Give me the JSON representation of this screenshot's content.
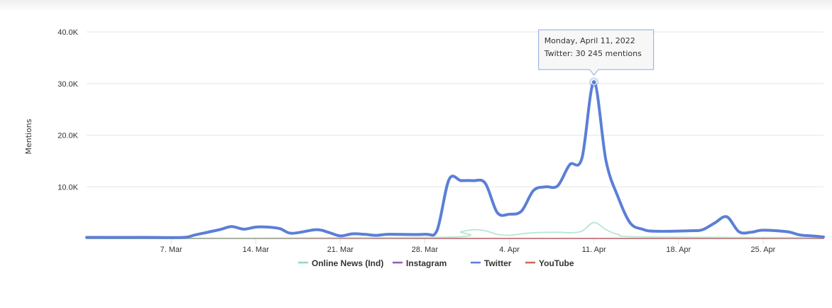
{
  "chart_data": {
    "type": "line",
    "title": "",
    "xlabel": "",
    "ylabel": "Mentions",
    "ylim": [
      0,
      40000
    ],
    "y_ticks": [
      {
        "value": 10000,
        "label": "10.0K"
      },
      {
        "value": 20000,
        "label": "20.0K"
      },
      {
        "value": 30000,
        "label": "30.0K"
      },
      {
        "value": 40000,
        "label": "40.0K"
      }
    ],
    "x_range": [
      "2022-02-28",
      "2022-04-30"
    ],
    "x_ticks": [
      {
        "date": "2022-03-07",
        "label": "7. Mar"
      },
      {
        "date": "2022-03-14",
        "label": "14. Mar"
      },
      {
        "date": "2022-03-21",
        "label": "21. Mar"
      },
      {
        "date": "2022-03-28",
        "label": "28. Mar"
      },
      {
        "date": "2022-04-04",
        "label": "4. Apr"
      },
      {
        "date": "2022-04-11",
        "label": "11. Apr"
      },
      {
        "date": "2022-04-18",
        "label": "18. Apr"
      },
      {
        "date": "2022-04-25",
        "label": "25. Apr"
      }
    ],
    "grid": true,
    "legend_position": "bottom",
    "series": [
      {
        "name": "Online News (Ind)",
        "color": "#90dbb8",
        "points": [
          [
            "2022-02-28",
            0
          ],
          [
            "2022-03-29",
            200
          ],
          [
            "2022-03-31",
            1300
          ],
          [
            "2022-04-01",
            1700
          ],
          [
            "2022-04-02",
            1500
          ],
          [
            "2022-04-03",
            800
          ],
          [
            "2022-04-04",
            600
          ],
          [
            "2022-04-05",
            900
          ],
          [
            "2022-04-06",
            1100
          ],
          [
            "2022-04-08",
            1200
          ],
          [
            "2022-04-09",
            1100
          ],
          [
            "2022-04-10",
            1400
          ],
          [
            "2022-04-11",
            3100
          ],
          [
            "2022-04-12",
            1700
          ],
          [
            "2022-04-13",
            800
          ],
          [
            "2022-04-15",
            300
          ],
          [
            "2022-04-30",
            150
          ]
        ]
      },
      {
        "name": "Instagram",
        "color": "#9b59b6",
        "points": [
          [
            "2022-02-28",
            0
          ],
          [
            "2022-04-30",
            0
          ]
        ]
      },
      {
        "name": "Twitter",
        "color": "#5b7fd6",
        "points": [
          [
            "2022-02-28",
            200
          ],
          [
            "2022-03-05",
            200
          ],
          [
            "2022-03-08",
            200
          ],
          [
            "2022-03-09",
            700
          ],
          [
            "2022-03-11",
            1700
          ],
          [
            "2022-03-12",
            2300
          ],
          [
            "2022-03-13",
            1800
          ],
          [
            "2022-03-14",
            2200
          ],
          [
            "2022-03-15",
            2200
          ],
          [
            "2022-03-16",
            1900
          ],
          [
            "2022-03-17",
            1000
          ],
          [
            "2022-03-19",
            1700
          ],
          [
            "2022-03-20",
            1200
          ],
          [
            "2022-03-21",
            500
          ],
          [
            "2022-03-22",
            900
          ],
          [
            "2022-03-23",
            800
          ],
          [
            "2022-03-24",
            600
          ],
          [
            "2022-03-25",
            800
          ],
          [
            "2022-03-28",
            800
          ],
          [
            "2022-03-29",
            1500
          ],
          [
            "2022-03-30",
            11400
          ],
          [
            "2022-03-31",
            11200
          ],
          [
            "2022-04-01",
            11200
          ],
          [
            "2022-04-02",
            10700
          ],
          [
            "2022-04-03",
            5000
          ],
          [
            "2022-04-04",
            4700
          ],
          [
            "2022-04-05",
            5300
          ],
          [
            "2022-04-06",
            9300
          ],
          [
            "2022-04-07",
            10000
          ],
          [
            "2022-04-08",
            10200
          ],
          [
            "2022-04-09",
            14300
          ],
          [
            "2022-04-10",
            15500
          ],
          [
            "2022-04-11",
            30245
          ],
          [
            "2022-04-12",
            15000
          ],
          [
            "2022-04-13",
            8000
          ],
          [
            "2022-04-14",
            3000
          ],
          [
            "2022-04-15",
            1800
          ],
          [
            "2022-04-16",
            1400
          ],
          [
            "2022-04-19",
            1500
          ],
          [
            "2022-04-20",
            1700
          ],
          [
            "2022-04-21",
            3000
          ],
          [
            "2022-04-22",
            4200
          ],
          [
            "2022-04-23",
            1300
          ],
          [
            "2022-04-24",
            1200
          ],
          [
            "2022-04-25",
            1600
          ],
          [
            "2022-04-27",
            1300
          ],
          [
            "2022-04-28",
            700
          ],
          [
            "2022-04-29",
            500
          ],
          [
            "2022-04-30",
            300
          ]
        ]
      },
      {
        "name": "YouTube",
        "color": "#c86a55",
        "points": [
          [
            "2022-02-28",
            0
          ],
          [
            "2022-04-30",
            0
          ]
        ]
      }
    ],
    "tooltip": {
      "date": "2022-04-11",
      "value": 30245,
      "line1": "Monday, April 11, 2022",
      "line2": "Twitter: 30 245 mentions"
    }
  }
}
